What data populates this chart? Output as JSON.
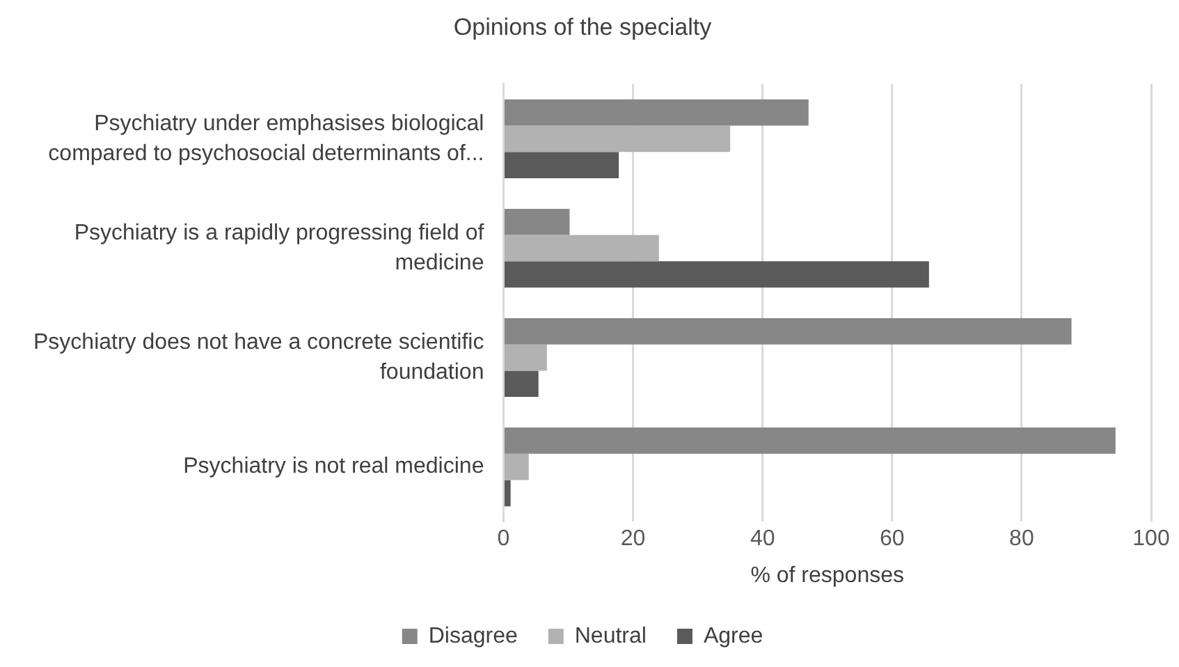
{
  "chart_data": {
    "type": "bar",
    "orientation": "horizontal",
    "title": "Opinions of the specialty",
    "xlabel": "% of responses",
    "categories": [
      "Psychiatry under emphasises biological compared to psychosocial determinants of...",
      "Psychiatry is a rapidly progressing field of medicine",
      "Psychiatry does not have a concrete scientific foundation",
      "Psychiatry is not real medicine"
    ],
    "series": [
      {
        "name": "Disagree",
        "color": "#878787",
        "values": [
          47.1,
          10.2,
          87.7,
          94.5
        ]
      },
      {
        "name": "Neutral",
        "color": "#b2b2b2",
        "values": [
          35.0,
          24.0,
          6.7,
          3.9
        ]
      },
      {
        "name": "Agree",
        "color": "#5a5a5a",
        "values": [
          17.8,
          65.7,
          5.4,
          1.1
        ]
      }
    ],
    "xlim": [
      0,
      100
    ],
    "xticks": [
      0,
      20,
      40,
      60,
      80,
      100
    ],
    "grid": "x",
    "legend": "bottom"
  }
}
